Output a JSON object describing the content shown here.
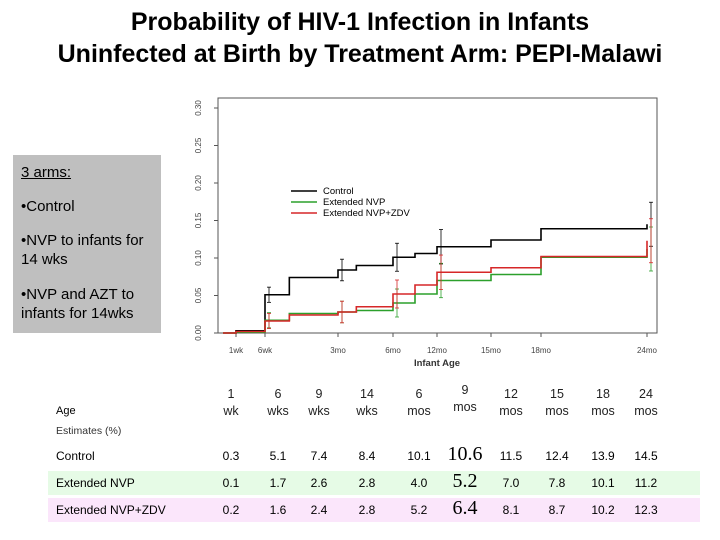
{
  "title_line1": "Probability of HIV-1 Infection in Infants",
  "title_line2": "Uninfected at Birth by Treatment Arm: PEPI-Malawi",
  "arms_box": {
    "heading": "3 arms:",
    "item1": "•Control",
    "item2": "•NVP to infants for 14 wks",
    "item3": "•NVP and AZT to infants for 14wks"
  },
  "table": {
    "age_label": "Age",
    "estimates_label": "Estimates (%)",
    "columns": [
      [
        "1",
        "wk"
      ],
      [
        "6",
        "wks"
      ],
      [
        "9",
        "wks"
      ],
      [
        "14",
        "wks"
      ],
      [
        "6",
        "mos"
      ],
      [
        "9",
        "mos"
      ],
      [
        "12",
        "mos"
      ],
      [
        "15",
        "mos"
      ],
      [
        "18",
        "mos"
      ],
      [
        "24",
        "mos"
      ]
    ],
    "rows": [
      {
        "label": "Control",
        "values": [
          "0.3",
          "5.1",
          "7.4",
          "8.4",
          "10.1",
          "10.6",
          "11.5",
          "12.4",
          "13.9",
          "14.5"
        ]
      },
      {
        "label": "Extended NVP",
        "values": [
          "0.1",
          "1.7",
          "2.6",
          "2.8",
          "4.0",
          "5.2",
          "7.0",
          "7.8",
          "10.1",
          "11.2"
        ]
      },
      {
        "label": "Extended NVP+ZDV",
        "values": [
          "0.2",
          "1.6",
          "2.4",
          "2.8",
          "5.2",
          "6.4",
          "8.1",
          "8.7",
          "10.2",
          "12.3"
        ]
      }
    ],
    "row_colors": [
      "#ffffff",
      "#e6fbe6",
      "#fbe6fb"
    ]
  },
  "chart_data": {
    "type": "line",
    "title": "",
    "xlabel": "Infant Age",
    "ylabel": "",
    "x_tick_labels": [
      "1wk",
      "6wk",
      "3mo",
      "6mo",
      "12mo",
      "15mo",
      "18mo",
      "24mo"
    ],
    "y_tick_labels": [
      "0.00",
      "0.05",
      "0.10",
      "0.15",
      "0.20",
      "0.25",
      "0.30"
    ],
    "ylim": [
      0,
      0.3
    ],
    "legend_position": "top-right",
    "series": [
      {
        "name": "Control",
        "color": "#000000",
        "x_months": [
          0.25,
          1.5,
          2,
          3,
          4,
          6,
          9,
          12,
          15,
          18,
          24
        ],
        "values": [
          0.003,
          0.051,
          0.074,
          0.084,
          0.09,
          0.101,
          0.106,
          0.115,
          0.124,
          0.139,
          0.145
        ]
      },
      {
        "name": "Extended NVP",
        "color": "#2ca02c",
        "x_months": [
          0.25,
          1.5,
          2,
          3,
          4,
          6,
          9,
          12,
          15,
          18,
          24
        ],
        "values": [
          0.001,
          0.017,
          0.026,
          0.028,
          0.03,
          0.04,
          0.052,
          0.07,
          0.078,
          0.101,
          0.112
        ]
      },
      {
        "name": "Extended NVP+ZDV",
        "color": "#d62728",
        "x_months": [
          0.25,
          1.5,
          2,
          3,
          4,
          6,
          9,
          12,
          15,
          18,
          24
        ],
        "values": [
          0.002,
          0.016,
          0.024,
          0.028,
          0.035,
          0.052,
          0.064,
          0.081,
          0.087,
          0.102,
          0.123
        ]
      }
    ]
  }
}
